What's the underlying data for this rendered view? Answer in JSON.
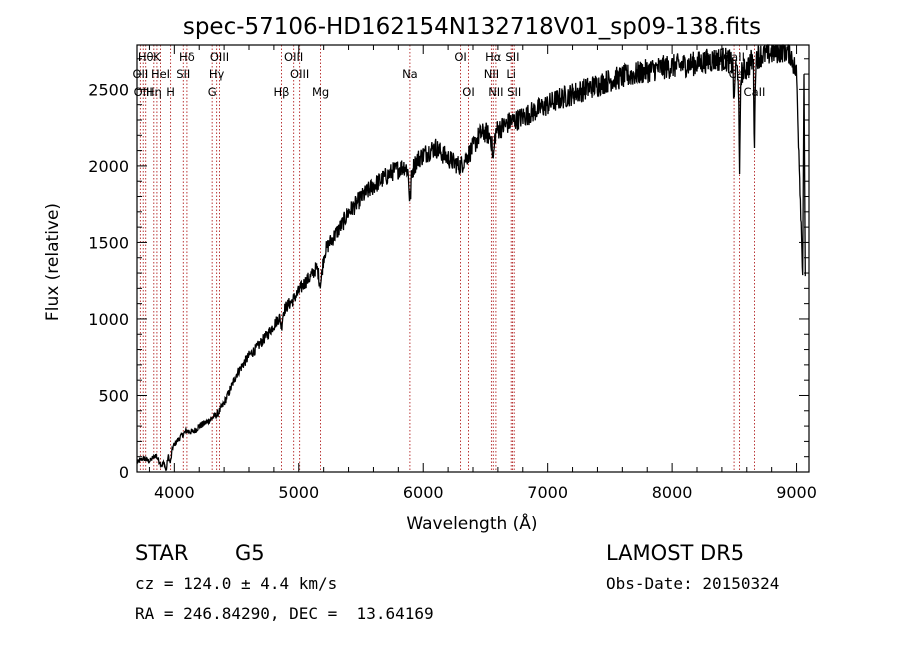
{
  "chart_data": {
    "type": "line",
    "title": "spec-57106-HD162154N132718V01_sp09-138.fits",
    "xlabel": "Wavelength (Å)",
    "ylabel": "Flux (relative)",
    "xlim": [
      3700,
      9100
    ],
    "ylim": [
      0,
      2790
    ],
    "x_ticks": [
      4000,
      5000,
      6000,
      7000,
      8000,
      9000
    ],
    "x_tick_labels": [
      "4000",
      "5000",
      "6000",
      "7000",
      "8000",
      "9000"
    ],
    "y_ticks": [
      0,
      500,
      1000,
      1500,
      2000,
      2500
    ],
    "y_tick_labels": [
      "0",
      "500",
      "1000",
      "1500",
      "2000",
      "2500"
    ],
    "grid": false,
    "series": [
      {
        "color": "#000000",
        "x": [
          3700,
          3750,
          3800,
          3850,
          3900,
          3950,
          4000,
          4050,
          4100,
          4150,
          4200,
          4250,
          4300,
          4350,
          4400,
          4450,
          4500,
          4550,
          4600,
          4650,
          4700,
          4750,
          4800,
          4850,
          4900,
          4950,
          5000,
          5050,
          5100,
          5150,
          5200,
          5250,
          5300,
          5350,
          5400,
          5450,
          5500,
          5550,
          5600,
          5650,
          5700,
          5750,
          5800,
          5850,
          5900,
          5950,
          6000,
          6050,
          6100,
          6150,
          6200,
          6250,
          6300,
          6350,
          6400,
          6450,
          6500,
          6550,
          6600,
          6650,
          6700,
          6750,
          6800,
          6850,
          6900,
          6950,
          7000,
          7100,
          7200,
          7300,
          7400,
          7500,
          7600,
          7700,
          7800,
          7900,
          8000,
          8100,
          8200,
          8300,
          8400,
          8450,
          8500,
          8550,
          8600,
          8650,
          8700,
          8750,
          8800,
          8850,
          8900,
          8950,
          9000,
          9050
        ],
        "y": [
          60,
          90,
          70,
          110,
          40,
          120,
          180,
          230,
          270,
          260,
          300,
          320,
          350,
          380,
          450,
          540,
          640,
          700,
          760,
          800,
          850,
          900,
          960,
          1020,
          1080,
          1120,
          1180,
          1240,
          1280,
          1350,
          1430,
          1500,
          1560,
          1620,
          1700,
          1740,
          1790,
          1830,
          1870,
          1900,
          1930,
          1960,
          1980,
          2000,
          1950,
          2040,
          2070,
          2100,
          2120,
          2080,
          2050,
          2020,
          2000,
          2060,
          2120,
          2200,
          2220,
          2180,
          2240,
          2260,
          2290,
          2300,
          2320,
          2340,
          2360,
          2380,
          2400,
          2440,
          2470,
          2500,
          2530,
          2560,
          2580,
          2600,
          2620,
          2640,
          2650,
          2660,
          2670,
          2690,
          2700,
          2690,
          2650,
          2600,
          2640,
          2700,
          2720,
          2730,
          2740,
          2750,
          2760,
          2740,
          2600,
          1280
        ]
      }
    ],
    "lines": [
      {
        "w": 3770,
        "label": "Hθ",
        "row": 1
      },
      {
        "w": 3727,
        "label": "OII",
        "row": 2
      },
      {
        "w": 3750,
        "label": "OIII",
        "row": 3
      },
      {
        "w": 3835,
        "label": "Hη",
        "row": 3
      },
      {
        "w": 3860,
        "label": "K",
        "row": 1
      },
      {
        "w": 3889,
        "label": "HeI",
        "row": 2
      },
      {
        "w": 3970,
        "label": "H",
        "row": 3
      },
      {
        "w": 4101,
        "label": "Hδ",
        "row": 1
      },
      {
        "w": 4072,
        "label": "SII",
        "row": 2
      },
      {
        "w": 4363,
        "label": "OIII",
        "row": 1
      },
      {
        "w": 4340,
        "label": "Hγ",
        "row": 2
      },
      {
        "w": 4304,
        "label": "G",
        "row": 3
      },
      {
        "w": 4861,
        "label": "Hβ",
        "row": 3
      },
      {
        "w": 4959,
        "label": "OIII",
        "row": 1
      },
      {
        "w": 5007,
        "label": "OIII",
        "row": 2
      },
      {
        "w": 5175,
        "label": "Mg",
        "row": 3
      },
      {
        "w": 5893,
        "label": "Na",
        "row": 2
      },
      {
        "w": 6300,
        "label": "OI",
        "row": 1
      },
      {
        "w": 6364,
        "label": "OI",
        "row": 3
      },
      {
        "w": 6563,
        "label": "Hα",
        "row": 1
      },
      {
        "w": 6548,
        "label": "NII",
        "row": 2
      },
      {
        "w": 6584,
        "label": "NII",
        "row": 3
      },
      {
        "w": 6717,
        "label": "SII",
        "row": 1
      },
      {
        "w": 6707,
        "label": "Li",
        "row": 2
      },
      {
        "w": 6731,
        "label": "SII",
        "row": 3
      },
      {
        "w": 8498,
        "label": "CaII",
        "row": 1
      },
      {
        "w": 8542,
        "label": "CaII",
        "row": 2
      },
      {
        "w": 8662,
        "label": "CaII",
        "row": 3
      }
    ]
  },
  "info": {
    "object_class": "STAR",
    "subclass": "G5",
    "survey": "LAMOST DR5",
    "cz": "cz = 124.0 ± 4.4 km/s",
    "obs_date": "Obs-Date: 20150324",
    "coords": "RA = 246.84290, DEC =  13.64169"
  }
}
